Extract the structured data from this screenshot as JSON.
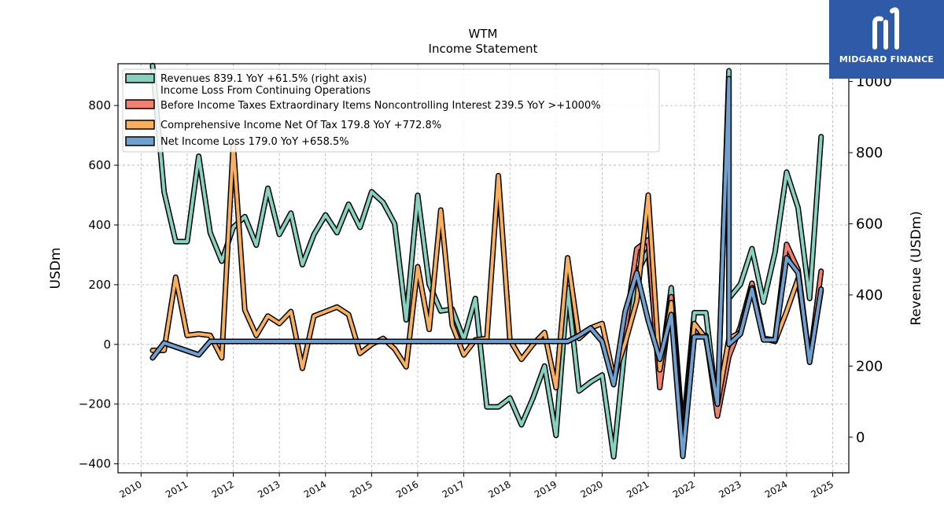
{
  "chart_data": {
    "type": "line",
    "title": "WTM",
    "subtitle": "Income Statement",
    "ylabel": "USDm",
    "ylabel_right": "Revenue (USDm)",
    "ylim": [
      -430,
      940
    ],
    "ylim_right": [
      -100,
      1050
    ],
    "yticks": [
      -400,
      -200,
      0,
      200,
      400,
      600,
      800
    ],
    "yticks_right": [
      0,
      200,
      400,
      600,
      800,
      1000
    ],
    "xlim": [
      2009.5,
      2025.35
    ],
    "xticks": [
      2010,
      2011,
      2012,
      2013,
      2014,
      2015,
      2016,
      2017,
      2018,
      2019,
      2020,
      2021,
      2022,
      2023,
      2024,
      2025
    ],
    "grid": true,
    "legend_position": "upper-left",
    "series": [
      {
        "name": "Revenues  839.1 YoY +61.5% (right axis)",
        "color": "#88d0c0",
        "axis": "right",
        "points": [
          [
            2010.25,
            1045
          ],
          [
            2010.5,
            690
          ],
          [
            2010.75,
            550
          ],
          [
            2011.0,
            550
          ],
          [
            2011.25,
            790
          ],
          [
            2011.5,
            575
          ],
          [
            2011.75,
            495
          ],
          [
            2012.0,
            590
          ],
          [
            2012.25,
            620
          ],
          [
            2012.5,
            540
          ],
          [
            2012.75,
            700
          ],
          [
            2013.0,
            570
          ],
          [
            2013.25,
            630
          ],
          [
            2013.5,
            485
          ],
          [
            2013.75,
            570
          ],
          [
            2014.0,
            625
          ],
          [
            2014.25,
            575
          ],
          [
            2014.5,
            655
          ],
          [
            2014.75,
            590
          ],
          [
            2015.0,
            690
          ],
          [
            2015.25,
            660
          ],
          [
            2015.5,
            600
          ],
          [
            2015.75,
            330
          ],
          [
            2016.0,
            680
          ],
          [
            2016.25,
            430
          ],
          [
            2016.5,
            355
          ],
          [
            2016.75,
            360
          ],
          [
            2017.0,
            275
          ],
          [
            2017.25,
            390
          ],
          [
            2017.5,
            85
          ],
          [
            2017.75,
            85
          ],
          [
            2018.0,
            110
          ],
          [
            2018.25,
            35
          ],
          [
            2018.5,
            110
          ],
          [
            2018.75,
            200
          ],
          [
            2019.0,
            5
          ],
          [
            2019.25,
            420
          ],
          [
            2019.5,
            130
          ],
          [
            2019.75,
            155
          ],
          [
            2020.0,
            175
          ],
          [
            2020.25,
            -55
          ],
          [
            2020.5,
            260
          ],
          [
            2020.75,
            460
          ],
          [
            2021.0,
            525
          ],
          [
            2021.25,
            170
          ],
          [
            2021.5,
            420
          ],
          [
            2021.75,
            10
          ],
          [
            2022.0,
            350
          ],
          [
            2022.25,
            350
          ],
          [
            2022.5,
            75
          ],
          [
            2022.75,
            1030
          ],
          [
            2022.75,
            390
          ],
          [
            2023.0,
            430
          ],
          [
            2023.25,
            530
          ],
          [
            2023.5,
            380
          ],
          [
            2023.75,
            520
          ],
          [
            2024.0,
            745
          ],
          [
            2024.25,
            645
          ],
          [
            2024.5,
            390
          ],
          [
            2024.75,
            845
          ]
        ]
      },
      {
        "name": "Income Loss From Continuing Operations Before Income Taxes Extraordinary Items Noncontrolling Interest  239.5 YoY >+1000%",
        "name_lines": [
          "Income Loss From Continuing Operations",
          "Before Income Taxes Extraordinary Items Noncontrolling Interest  239.5 YoY >+1000%"
        ],
        "color": "#f08070",
        "axis": "left",
        "points": [
          [
            2010.25,
            -45
          ],
          [
            2010.5,
            5
          ],
          [
            2011.25,
            -35
          ],
          [
            2011.5,
            10
          ],
          [
            2019.25,
            10
          ],
          [
            2019.5,
            30
          ],
          [
            2019.75,
            55
          ],
          [
            2020.0,
            10
          ],
          [
            2020.25,
            -130
          ],
          [
            2020.5,
            50
          ],
          [
            2020.75,
            320
          ],
          [
            2021.0,
            350
          ],
          [
            2021.25,
            -145
          ],
          [
            2021.5,
            160
          ],
          [
            2021.75,
            -360
          ],
          [
            2022.0,
            30
          ],
          [
            2022.25,
            30
          ],
          [
            2022.5,
            -240
          ],
          [
            2022.75,
            -40
          ],
          [
            2023.0,
            60
          ],
          [
            2023.25,
            205
          ],
          [
            2023.5,
            20
          ],
          [
            2023.75,
            15
          ],
          [
            2024.0,
            335
          ],
          [
            2024.25,
            250
          ],
          [
            2024.5,
            -55
          ],
          [
            2024.75,
            245
          ]
        ]
      },
      {
        "name": "Comprehensive Income Net Of Tax  179.8 YoY +772.8%",
        "color": "#f8b060",
        "axis": "left",
        "points": [
          [
            2010.25,
            -20
          ],
          [
            2010.5,
            -20
          ],
          [
            2010.75,
            225
          ],
          [
            2011.0,
            30
          ],
          [
            2011.25,
            35
          ],
          [
            2011.5,
            30
          ],
          [
            2011.75,
            -45
          ],
          [
            2012.0,
            670
          ],
          [
            2012.25,
            115
          ],
          [
            2012.5,
            30
          ],
          [
            2012.75,
            95
          ],
          [
            2013.0,
            70
          ],
          [
            2013.25,
            110
          ],
          [
            2013.5,
            -80
          ],
          [
            2013.75,
            95
          ],
          [
            2014.0,
            110
          ],
          [
            2014.25,
            125
          ],
          [
            2014.5,
            100
          ],
          [
            2014.75,
            -30
          ],
          [
            2015.0,
            0
          ],
          [
            2015.25,
            20
          ],
          [
            2015.5,
            -15
          ],
          [
            2015.75,
            -75
          ],
          [
            2016.0,
            260
          ],
          [
            2016.25,
            50
          ],
          [
            2016.5,
            450
          ],
          [
            2016.75,
            65
          ],
          [
            2017.0,
            -35
          ],
          [
            2017.25,
            15
          ],
          [
            2017.5,
            20
          ],
          [
            2017.75,
            565
          ],
          [
            2018.0,
            15
          ],
          [
            2018.25,
            -50
          ],
          [
            2018.5,
            0
          ],
          [
            2018.75,
            40
          ],
          [
            2019.0,
            -145
          ],
          [
            2019.25,
            290
          ],
          [
            2019.5,
            20
          ],
          [
            2019.75,
            55
          ],
          [
            2020.0,
            70
          ],
          [
            2020.25,
            -110
          ],
          [
            2020.5,
            5
          ],
          [
            2020.75,
            145
          ],
          [
            2021.0,
            500
          ],
          [
            2021.25,
            -85
          ],
          [
            2021.5,
            140
          ],
          [
            2021.75,
            -350
          ],
          [
            2022.0,
            70
          ],
          [
            2022.25,
            20
          ],
          [
            2022.5,
            -200
          ],
          [
            2022.75,
            20
          ],
          [
            2023.0,
            40
          ],
          [
            2023.25,
            190
          ],
          [
            2023.5,
            20
          ],
          [
            2023.75,
            10
          ],
          [
            2024.0,
            110
          ],
          [
            2024.25,
            220
          ],
          [
            2024.5,
            -55
          ],
          [
            2024.75,
            180
          ]
        ]
      },
      {
        "name": "Net Income Loss  179.0 YoY +658.5%",
        "color": "#70a0d0",
        "axis": "left",
        "points": [
          [
            2010.25,
            -45
          ],
          [
            2010.5,
            5
          ],
          [
            2011.25,
            -35
          ],
          [
            2011.5,
            10
          ],
          [
            2019.25,
            10
          ],
          [
            2019.5,
            30
          ],
          [
            2019.75,
            55
          ],
          [
            2020.0,
            10
          ],
          [
            2020.25,
            -135
          ],
          [
            2020.5,
            110
          ],
          [
            2020.75,
            240
          ],
          [
            2021.0,
            80
          ],
          [
            2021.25,
            -50
          ],
          [
            2021.5,
            100
          ],
          [
            2021.75,
            -375
          ],
          [
            2022.0,
            25
          ],
          [
            2022.25,
            25
          ],
          [
            2022.5,
            -200
          ],
          [
            2022.75,
            890
          ],
          [
            2022.75,
            0
          ],
          [
            2023.0,
            35
          ],
          [
            2023.25,
            185
          ],
          [
            2023.5,
            15
          ],
          [
            2023.75,
            15
          ],
          [
            2024.0,
            290
          ],
          [
            2024.25,
            240
          ],
          [
            2024.5,
            -60
          ],
          [
            2024.75,
            185
          ]
        ]
      }
    ]
  },
  "brand": {
    "name": "MIDGARD FINANCE",
    "color": "#2f5aa8"
  }
}
